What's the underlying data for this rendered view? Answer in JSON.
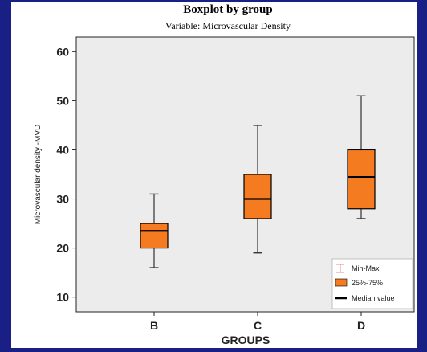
{
  "chart_data": {
    "type": "boxplot",
    "title": "Boxplot  by group",
    "subtitle": "Variable: Microvascular Density",
    "xlabel": "GROUPS",
    "ylabel": "Microvascular density -MVD",
    "ylim": [
      7,
      63
    ],
    "yticks": [
      10,
      20,
      30,
      40,
      50,
      60
    ],
    "grid": false,
    "legend_position": "bottom-right",
    "categories": [
      "B",
      "C",
      "D"
    ],
    "boxes": [
      {
        "category": "B",
        "min": 16,
        "q1": 20,
        "median": 23.5,
        "q3": 25,
        "max": 31
      },
      {
        "category": "C",
        "min": 19,
        "q1": 26,
        "median": 30,
        "q3": 35,
        "max": 45
      },
      {
        "category": "D",
        "min": 26,
        "q1": 28,
        "median": 34.5,
        "q3": 40,
        "max": 51
      }
    ],
    "legend": [
      {
        "key": "minmax",
        "label": "Min-Max"
      },
      {
        "key": "box",
        "label": "25%-75%"
      },
      {
        "key": "median",
        "label": "Median value"
      }
    ],
    "colors": {
      "box_fill": "#f47b20",
      "box_edge": "#000000",
      "whisker": "#333333",
      "median": "#000000",
      "plot_bg": "#ececec",
      "outer_bg": "#1a1f86",
      "legend_minmax": "#e8a0a0"
    }
  }
}
